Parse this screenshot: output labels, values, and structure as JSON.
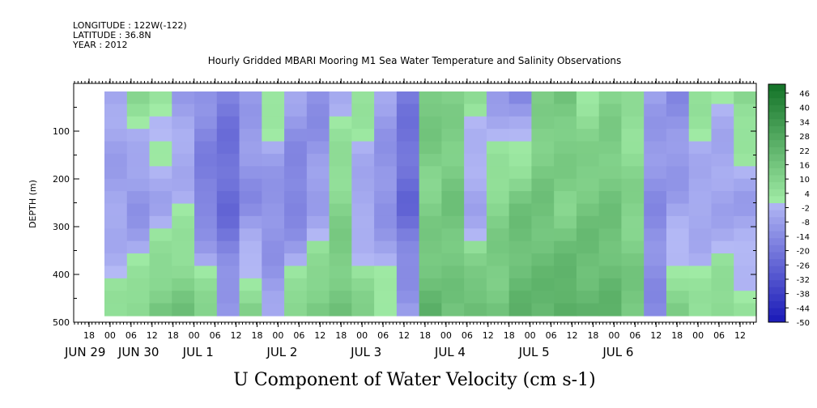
{
  "header": {
    "longitude": "LONGITUDE : 122W(-122)",
    "latitude": "LATITUDE : 36.8N",
    "year": "YEAR : 2012",
    "title": "Hourly Gridded MBARI Mooring M1 Sea Water Temperature and Salinity Observations"
  },
  "chart_data": {
    "type": "heatmap",
    "title": "Hourly Gridded MBARI Mooring M1 Sea Water Temperature and Salinity Observations",
    "xlabel": "U Component of Water Velocity (cm s-1)",
    "ylabel": "DEPTH (m)",
    "ylim": [
      500,
      0
    ],
    "y_ticks": [
      100,
      200,
      300,
      400,
      500
    ],
    "x_hour_ticks": [
      "18",
      "00",
      "06",
      "12",
      "18",
      "00",
      "06",
      "12",
      "18",
      "00",
      "06",
      "12",
      "18",
      "00",
      "06",
      "12",
      "18",
      "00",
      "06",
      "12",
      "18",
      "00",
      "06",
      "12",
      "18",
      "00",
      "06",
      "12",
      "18",
      "00",
      "06",
      "12"
    ],
    "x_date_labels": [
      "JUN 29",
      "JUN 30",
      "JUL  1",
      "JUL  2",
      "JUL  3",
      "JUL  4",
      "JUL  5",
      "JUL  6"
    ],
    "colorbar": {
      "labels": [
        "46",
        "40",
        "34",
        "28",
        "22",
        "16",
        "10",
        "4",
        "-2",
        "-8",
        "-14",
        "-20",
        "-26",
        "-32",
        "-38",
        "-44",
        "-50"
      ],
      "min": -50,
      "max": 50,
      "step": 3,
      "colors_negative": "#8a96e6",
      "colors_positive": "#7fe28f"
    },
    "columns": [
      {
        "time": "JUN 29 12",
        "top": -6,
        "mid": -8,
        "bottom": 4
      },
      {
        "time": "JUN 29 18",
        "top": 6,
        "mid": -14,
        "bottom": 10
      },
      {
        "time": "JUN 30 00",
        "top": 4,
        "mid": -6,
        "bottom": 16
      },
      {
        "time": "JUN 30 06",
        "top": -8,
        "mid": -2,
        "bottom": 16
      },
      {
        "time": "JUN 30 12",
        "top": -14,
        "mid": -20,
        "bottom": 10
      },
      {
        "time": "JUN 30 18",
        "top": -20,
        "mid": -26,
        "bottom": -8
      },
      {
        "time": "JUL 1 00",
        "top": -8,
        "mid": -14,
        "bottom": 10
      },
      {
        "time": "JUL 1 06",
        "top": 4,
        "mid": -14,
        "bottom": -8
      },
      {
        "time": "JUL 1 12",
        "top": -8,
        "mid": -20,
        "bottom": 10
      },
      {
        "time": "JUL 1 18",
        "top": -14,
        "mid": -8,
        "bottom": 16
      },
      {
        "time": "JUL 2 00",
        "top": -2,
        "mid": 10,
        "bottom": 16
      },
      {
        "time": "JUL 2 06",
        "top": 4,
        "mid": -8,
        "bottom": 10
      },
      {
        "time": "JUL 2 12",
        "top": -8,
        "mid": -14,
        "bottom": 4
      },
      {
        "time": "JUL 2 18",
        "top": -20,
        "mid": -26,
        "bottom": -8
      },
      {
        "time": "JUL 3 00",
        "top": 16,
        "mid": 10,
        "bottom": 22
      },
      {
        "time": "JUL 3 06",
        "top": 10,
        "mid": 16,
        "bottom": 16
      },
      {
        "time": "JUL 3 12",
        "top": 4,
        "mid": -8,
        "bottom": 22
      },
      {
        "time": "JUL 3 18",
        "top": -8,
        "mid": 10,
        "bottom": 16
      },
      {
        "time": "JUL 4 00",
        "top": -14,
        "mid": 16,
        "bottom": 22
      },
      {
        "time": "JUL 4 06",
        "top": 10,
        "mid": 16,
        "bottom": 22
      },
      {
        "time": "JUL 4 12",
        "top": 16,
        "mid": 10,
        "bottom": 28
      },
      {
        "time": "JUL 4 18",
        "top": 4,
        "mid": 16,
        "bottom": 22
      },
      {
        "time": "JUL 5 00",
        "top": 10,
        "mid": 16,
        "bottom": 22
      },
      {
        "time": "JUL 5 06",
        "top": 4,
        "mid": 10,
        "bottom": 16
      },
      {
        "time": "JUL 5 12",
        "top": -8,
        "mid": -14,
        "bottom": -14
      },
      {
        "time": "JUL 5 18",
        "top": -14,
        "mid": -8,
        "bottom": 10
      },
      {
        "time": "JUL 6 00",
        "top": 4,
        "mid": -8,
        "bottom": 4
      },
      {
        "time": "JUL 6 06",
        "top": -2,
        "mid": -8,
        "bottom": 10
      },
      {
        "time": "JUL 6 12",
        "top": 10,
        "mid": -8,
        "bottom": 4
      }
    ]
  }
}
